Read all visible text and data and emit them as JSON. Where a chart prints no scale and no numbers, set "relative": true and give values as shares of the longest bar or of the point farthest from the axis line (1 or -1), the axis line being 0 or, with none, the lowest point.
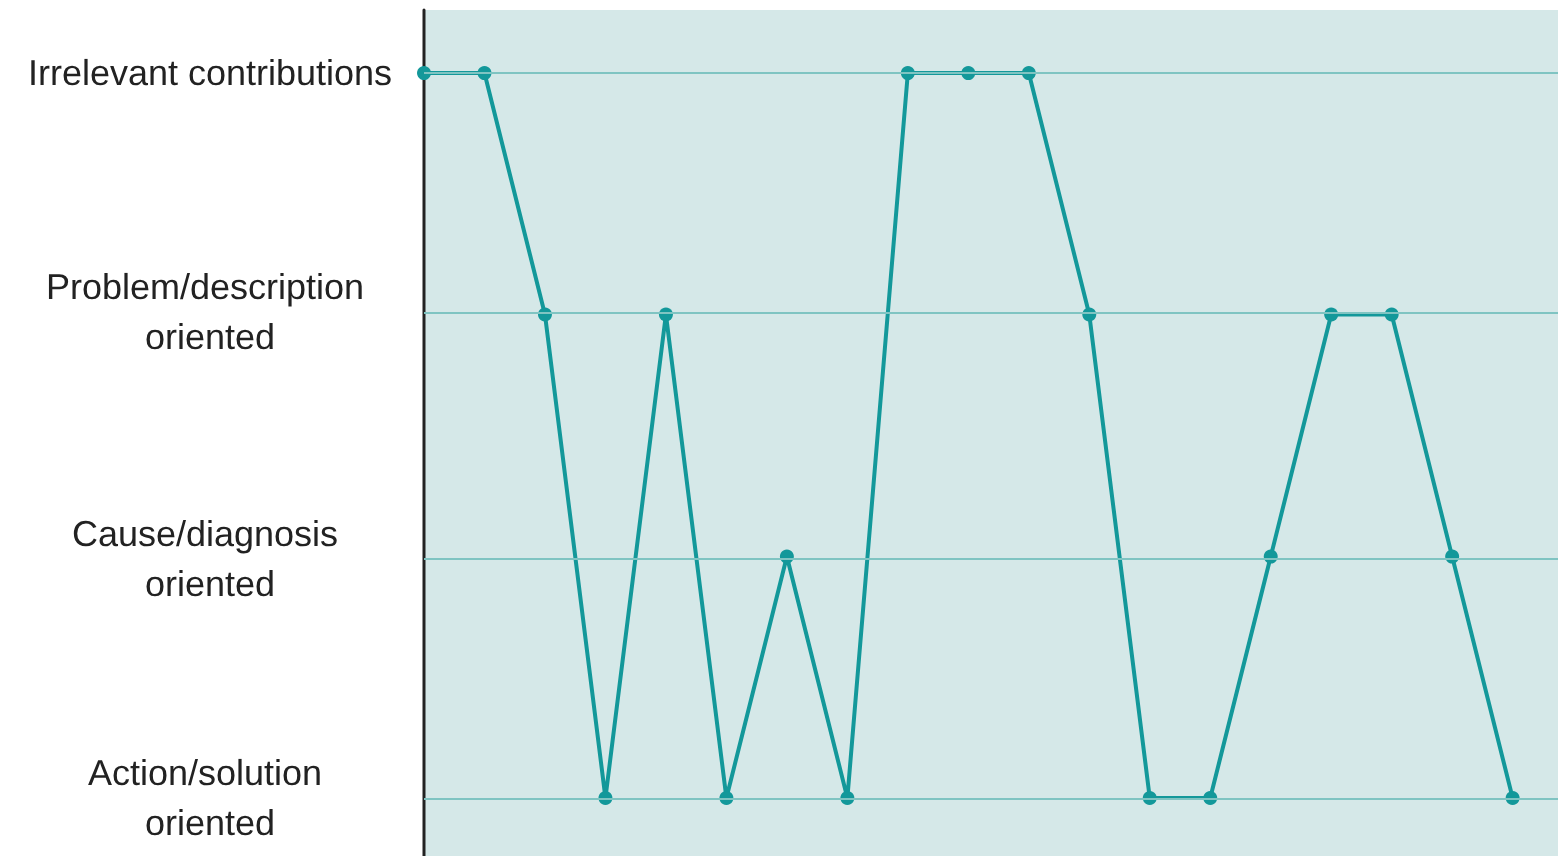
{
  "chart_data": {
    "type": "line",
    "relative": true,
    "categories": [
      null,
      null,
      null,
      null,
      null,
      null,
      null,
      null,
      null,
      null,
      null,
      null,
      null,
      null,
      null,
      null,
      null,
      null,
      null
    ],
    "series": [
      {
        "color": "#13989a",
        "values": [
          1,
          1,
          0.667,
          0,
          0.667,
          0,
          0.333,
          0,
          1,
          1,
          1,
          0.667,
          0,
          0,
          0.333,
          0.667,
          0.667,
          0.333,
          0
        ]
      }
    ],
    "ref_lines": [
      {
        "axis": "y",
        "value": 1,
        "label": "Irrelevant contributions",
        "color": "#7fc4c2"
      },
      {
        "axis": "y",
        "value": 0.667,
        "label": "Problem/description oriented",
        "color": "#7fc4c2"
      },
      {
        "axis": "y",
        "value": 0.333,
        "label": "Cause/diagnosis oriented",
        "color": "#7fc4c2"
      },
      {
        "axis": "y",
        "value": 0,
        "label": "Action/solution oriented",
        "color": "#7fc4c2"
      }
    ],
    "marker": "circle",
    "line_style": "solid",
    "tick_labels": false
  }
}
